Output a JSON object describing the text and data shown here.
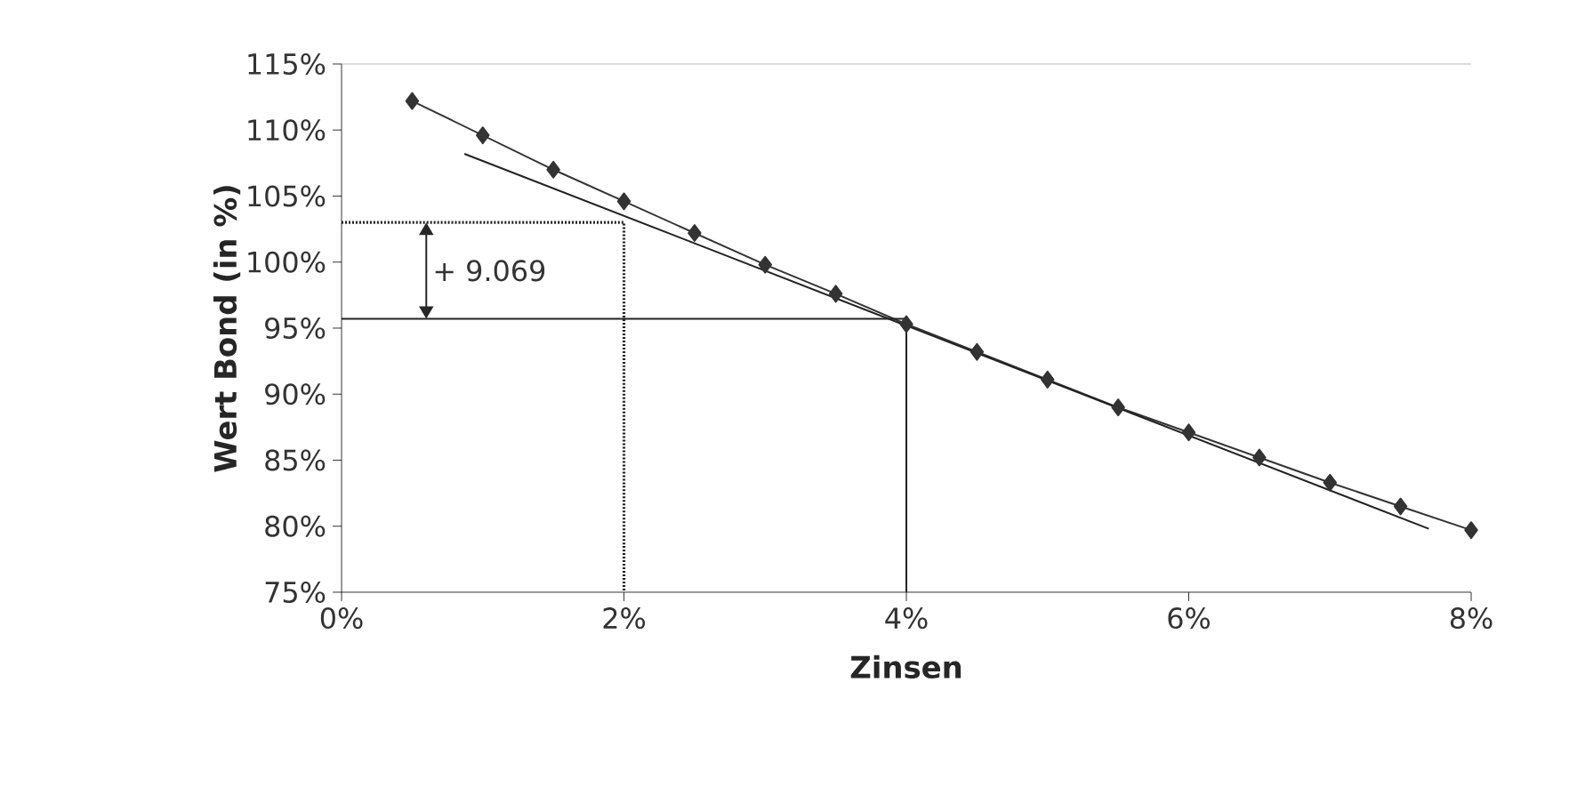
{
  "chart_data": {
    "type": "line",
    "xlabel": "Zinsen",
    "ylabel": "Wert Bond (in %)",
    "xlim": [
      0,
      8
    ],
    "ylim": [
      75,
      115
    ],
    "xticks": [
      {
        "value": 0,
        "label": "0%"
      },
      {
        "value": 2,
        "label": "2%"
      },
      {
        "value": 4,
        "label": "4%"
      },
      {
        "value": 6,
        "label": "6%"
      },
      {
        "value": 8,
        "label": "8%"
      }
    ],
    "yticks": [
      {
        "value": 75,
        "label": "75%"
      },
      {
        "value": 80,
        "label": "80%"
      },
      {
        "value": 85,
        "label": "85%"
      },
      {
        "value": 90,
        "label": "90%"
      },
      {
        "value": 95,
        "label": "95%"
      },
      {
        "value": 100,
        "label": "100%"
      },
      {
        "value": 105,
        "label": "105%"
      },
      {
        "value": 110,
        "label": "110%"
      },
      {
        "value": 115,
        "label": "115%"
      }
    ],
    "series": [
      {
        "color": "#333333",
        "marker": "diamond",
        "line_style": "solid",
        "x": [
          0.5,
          1,
          1.5,
          2,
          2.5,
          3,
          3.5,
          4,
          4.5,
          5,
          5.5,
          6,
          6.5,
          7,
          7.5,
          8
        ],
        "values": [
          112.2,
          109.6,
          107.0,
          104.6,
          102.2,
          99.8,
          97.6,
          95.3,
          93.2,
          91.1,
          89.0,
          87.1,
          85.2,
          83.3,
          81.5,
          79.7
        ]
      },
      {
        "color": "#222222",
        "marker": "none",
        "line_style": "solid",
        "x": [
          0.87,
          7.7
        ],
        "values": [
          108.2,
          79.8
        ]
      },
      {
        "color": "#222222",
        "marker": "none",
        "line_style": "dotted",
        "x": [
          0,
          2,
          2
        ],
        "values": [
          103.0,
          103.0,
          75
        ]
      },
      {
        "color": "#222222",
        "marker": "none",
        "line_style": "solid",
        "x": [
          0,
          4,
          4
        ],
        "values": [
          95.7,
          95.7,
          75
        ]
      }
    ],
    "annotations": [
      "+ 9.069"
    ],
    "grid": false,
    "legend": false
  }
}
